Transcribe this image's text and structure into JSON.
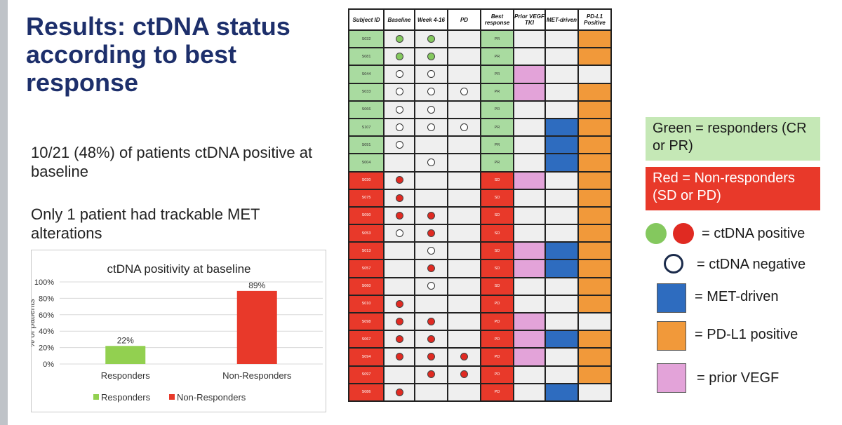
{
  "title": "Results: ctDNA status according to best response",
  "stat1": "10/21 (48%) of patients ctDNA positive at baseline",
  "stat2": "Only 1 patient had trackable MET alterations",
  "chart_data": {
    "type": "bar",
    "title": "ctDNA positivity at baseline",
    "ylabel": "% of patients",
    "xlabel": "",
    "categories": [
      "Responders",
      "Non-Responders"
    ],
    "values": [
      22,
      89
    ],
    "value_labels": [
      "22%",
      "89%"
    ],
    "colors": [
      "#92d050",
      "#e8392a"
    ],
    "ylim": [
      0,
      100
    ],
    "yticks": [
      "0%",
      "20%",
      "40%",
      "60%",
      "80%",
      "100%"
    ],
    "grid": true,
    "legend": {
      "placement": "bottom",
      "entries": [
        "Responders",
        "Non-Responders"
      ]
    }
  },
  "table": {
    "headers": [
      "Subject ID",
      "Baseline",
      "Week 4-16",
      "PD",
      "Best response",
      "Prior VEGF TKI",
      "MET-driven",
      "PD-L1 Positive"
    ],
    "rows": [
      {
        "id": "S032",
        "group": "green",
        "baseline": "green",
        "week": "green",
        "pd": "",
        "resp": "PR",
        "prior": false,
        "met": false,
        "pdl1": true
      },
      {
        "id": "S081",
        "group": "green",
        "baseline": "green",
        "week": "green",
        "pd": "",
        "resp": "PR",
        "prior": false,
        "met": false,
        "pdl1": true
      },
      {
        "id": "S044",
        "group": "green",
        "baseline": "open",
        "week": "open",
        "pd": "",
        "resp": "PR",
        "prior": true,
        "met": false,
        "pdl1": false
      },
      {
        "id": "S033",
        "group": "green",
        "baseline": "open",
        "week": "open",
        "pd": "open",
        "resp": "PR",
        "prior": true,
        "met": false,
        "pdl1": true
      },
      {
        "id": "S066",
        "group": "green",
        "baseline": "open",
        "week": "open",
        "pd": "",
        "resp": "PR",
        "prior": false,
        "met": false,
        "pdl1": true
      },
      {
        "id": "S107",
        "group": "green",
        "baseline": "open",
        "week": "open",
        "pd": "open",
        "resp": "PR",
        "prior": false,
        "met": true,
        "pdl1": true
      },
      {
        "id": "S091",
        "group": "green",
        "baseline": "open",
        "week": "",
        "pd": "",
        "resp": "PR",
        "prior": false,
        "met": true,
        "pdl1": true
      },
      {
        "id": "S004",
        "group": "green",
        "baseline": "",
        "week": "open",
        "pd": "",
        "resp": "PR",
        "prior": false,
        "met": true,
        "pdl1": true
      },
      {
        "id": "S030",
        "group": "red",
        "baseline": "red",
        "week": "",
        "pd": "",
        "resp": "SD",
        "prior": true,
        "met": false,
        "pdl1": true
      },
      {
        "id": "S075",
        "group": "red",
        "baseline": "red",
        "week": "",
        "pd": "",
        "resp": "SD",
        "prior": false,
        "met": false,
        "pdl1": true
      },
      {
        "id": "S090",
        "group": "red",
        "baseline": "red",
        "week": "red",
        "pd": "",
        "resp": "SD",
        "prior": false,
        "met": false,
        "pdl1": true
      },
      {
        "id": "S053",
        "group": "red",
        "baseline": "open",
        "week": "red",
        "pd": "",
        "resp": "SD",
        "prior": false,
        "met": false,
        "pdl1": true
      },
      {
        "id": "S013",
        "group": "red",
        "baseline": "",
        "week": "open",
        "pd": "",
        "resp": "SD",
        "prior": true,
        "met": true,
        "pdl1": true
      },
      {
        "id": "S057",
        "group": "red",
        "baseline": "",
        "week": "red",
        "pd": "",
        "resp": "SD",
        "prior": true,
        "met": true,
        "pdl1": true
      },
      {
        "id": "S060",
        "group": "red",
        "baseline": "",
        "week": "open",
        "pd": "",
        "resp": "SD",
        "prior": false,
        "met": false,
        "pdl1": true
      },
      {
        "id": "S010",
        "group": "red",
        "baseline": "red",
        "week": "",
        "pd": "",
        "resp": "PD",
        "prior": false,
        "met": false,
        "pdl1": true
      },
      {
        "id": "S098",
        "group": "red",
        "baseline": "red",
        "week": "red",
        "pd": "",
        "resp": "PD",
        "prior": true,
        "met": false,
        "pdl1": false
      },
      {
        "id": "S067",
        "group": "red",
        "baseline": "red",
        "week": "red",
        "pd": "",
        "resp": "PD",
        "prior": true,
        "met": true,
        "pdl1": true
      },
      {
        "id": "S094",
        "group": "red",
        "baseline": "red",
        "week": "red",
        "pd": "red",
        "resp": "PD",
        "prior": true,
        "met": false,
        "pdl1": true
      },
      {
        "id": "S097",
        "group": "red",
        "baseline": "",
        "week": "red",
        "pd": "red",
        "resp": "PD",
        "prior": false,
        "met": false,
        "pdl1": true
      },
      {
        "id": "S086",
        "group": "red",
        "baseline": "red",
        "week": "",
        "pd": "",
        "resp": "PD",
        "prior": false,
        "met": true,
        "pdl1": false
      }
    ]
  },
  "legend": {
    "green_box": "Green = responders (CR or PR)",
    "red_box": "Red = Non-responders (SD or PD)",
    "ctdna_pos": "= ctDNA positive",
    "ctdna_neg": "= ctDNA negative",
    "met": "= MET-driven",
    "pdl1": "= PD-L1 positive",
    "vegf": "= prior VEGF"
  },
  "colors": {
    "title": "#1d2f6b",
    "green": "#a9dba0",
    "red": "#e8392a",
    "blue": "#2e6cbf",
    "orange": "#f1993a",
    "pink": "#e3a3d9"
  }
}
